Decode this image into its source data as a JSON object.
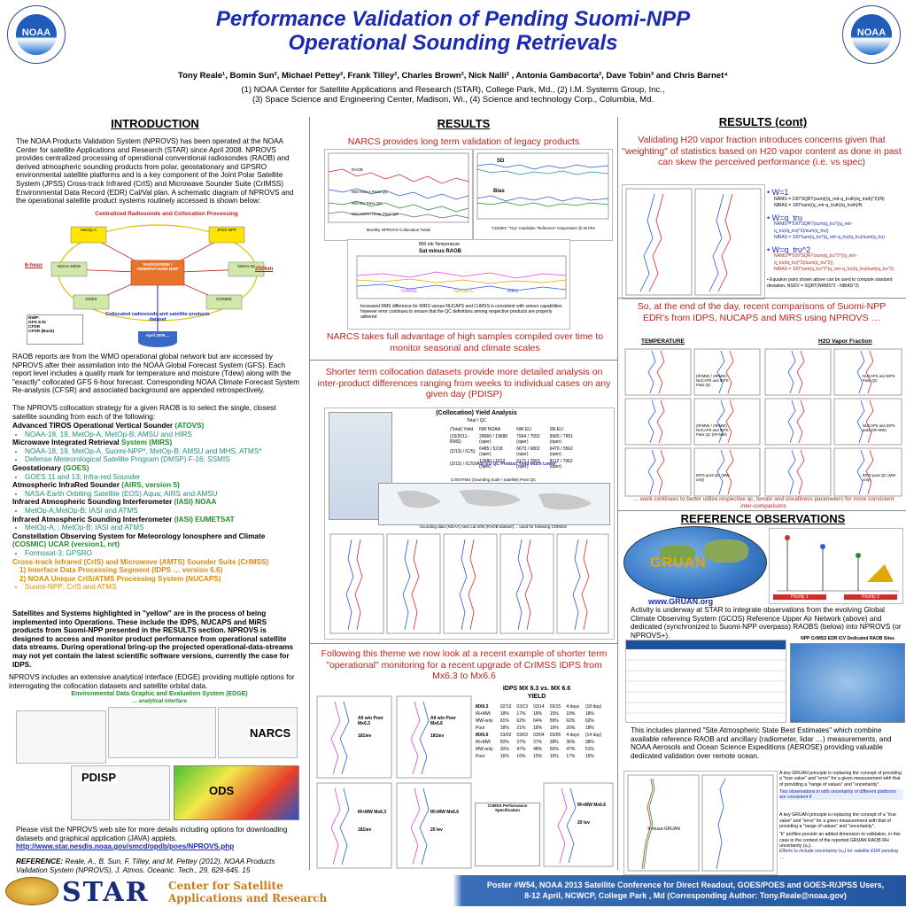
{
  "header": {
    "title_line1": "Performance Validation of Pending Suomi-NPP",
    "title_line2": "Operational Sounding Retrievals",
    "authors": "Tony Reale¹, Bomin Sun², Michael Pettey², Frank Tilley², Charles Brown², Nick Nalli² , Antonia Gambacorta², Dave Tobin³ and Chris Barnet⁴",
    "affil_line1": "(1) NOAA Center for Satellite Applications and Research (STAR), College Park, Md., (2) I.M. Systems Group, Inc.,",
    "affil_line2": "(3) Space Science and Engineering Center, Madison, Wi., (4) Science and technology Corp., Columbia, Md.",
    "logo_text": "NOAA"
  },
  "intro": {
    "heading": "INTRODUCTION",
    "p1": "The NOAA Products Validation System (NPROVS) has been operated at the NOAA Center for satellite Applications and Research (STAR) since April 2008. NPROVS provides centralized processing of operational conventional radiosondes (RAOB) and derived atmospheric sounding products from polar, geostationary and GPSRO environmental satellite platforms and is a key component of the Joint Polar Satellite System (JPSS) Cross-track Infrared (CrIS) and Microwave Sounder Suite (CrIMSS) Environmental Data Record (EDR) Cal/Val plan. A schematic diagram of NPROVS and the operational satellite product systems routinely accessed is shown below:",
    "diagram_title": "Centralized Radiosonde and Collocation Processing",
    "diagram_left_label": "6-hour",
    "diagram_right_label": "250km",
    "diagram_center": "RADIOSONDE / OBSERVATIONS NWP",
    "diagram_nodes": [
      "MetOp-A",
      "JPSS-NPP",
      "NOAA-18/19",
      "NOAA-15",
      "GOES",
      "COSMIC",
      "MetOp-B",
      "AIRS"
    ],
    "diagram_bottom": "Collocated radiosonde and satellite products dataset",
    "diagram_nwp": "NWP:\nGFS 6-hr\nCFSR\nCFSR (Back)",
    "diagram_db": "April 2008 ...",
    "p2": "RAOB reports are from the WMO operational global network but are accessed by NPROVS after their assimilation into the NOAA Global Forecast System (GFS). Each report level includes a quality mark for temperature and moisture (Tdew) along with the \"exactly\" collocated GFS 6-hour forecast. Corresponding NOAA Climate Forecast System Re-analysis (CFSR) and associated background are appended retrospectively.",
    "p3": "The NPROVS collocation strategy for a given RAOB is to select the single, closest satellite sounding from each of the following:",
    "systems": [
      {
        "name": "Advanced TIROS Operational Vertical Sounder",
        "tag": "(ATOVS)",
        "items": [
          "NOAA-18, 19, MetOp-A, MetOp-B; AMSU and HIRS"
        ]
      },
      {
        "name": "Microwave Integrated Retrieval",
        "tag": "System (MIRS)",
        "items": [
          "NOAA-18, 19, MetOp-A, Suomi-NPP*, MetOp-B; AMSU and MHS, ATMS*",
          "Defense Meteorological Satellite Program (DMSP) F-16; SSMIS"
        ]
      },
      {
        "name": "Geostationary",
        "tag": "(GOES)",
        "items": [
          "GOES 11 and 13; Infra-red Sounder"
        ]
      },
      {
        "name": "Atmospheric InfraRed Sounder",
        "tag": "(AIRS, version 5)",
        "items": [
          "NASA-Earth Orbiting Satellite (EOS) Aqua; AIRS and AMSU"
        ]
      },
      {
        "name": "Infrared Atmospheric Sounding Interferometer",
        "tag": "(IASI) NOAA",
        "items": [
          "MetOp-A,MetOp-B; IASI and ATMS"
        ]
      },
      {
        "name": "Infrared Atmospheric Sounding Interferometer",
        "tag": "(IASI) EUMETSAT",
        "items": [
          "MetOp-A, ; MetOp-B; IASI and ATMS"
        ]
      },
      {
        "name": "Constellation Observing System for Meteorology Ionosphere and Climate",
        "tag": "(COSMIC) UCAR (version1, nrt)",
        "items": [
          "Formosat-3; GPSRO"
        ]
      }
    ],
    "crimss_line1": "Cross-track Infrared (CrIS) and Microwave (AMTS) Sounder Suite (CrIMSS)",
    "crimss_line2": "1) Interface Data Processing Segment (IDPS … version 6.6)",
    "crimss_line3": "2) NOAA Unique CrIS/ATMS Processing System (NUCAPS)",
    "crimss_item": "Suomi-NPP; CrIS and ATMS",
    "p4": "Satellites and Systems highlighted in \"yellow\" are in the process of being implemented into Operations. These include the IDPS, NUCAPS and MiRS products from Suomi-NPP presented in the RESULTS section. NPROVS is designed to access and monitor product performance from operational satellite data streams. During operational bring-up the projected operational-data-streams may not yet contain the latest scientific software versions, currently the case for IDPS.",
    "p5": "NPROVS includes an extensive analytical interface (EDGE) providing multiple options for interrogating the collocation datasets and satellite orbital data.",
    "edge_title": "Environmental Data Graphic and Evaluation System (EDGE)",
    "edge_sub": "… analytical interface",
    "label_narcs": "NARCS",
    "label_pdisp": "PDISP",
    "label_ods": "ODS",
    "p6": "Please visit the NPROVS web site for more details including options for downloading datasets and graphical application (JAVA) applets.",
    "url": "http://www.star.nesdis.noaa.gov/smcd/opdb/poes/NPROVS.php",
    "ref_label": "REFERENCE:",
    "ref_text": "Reale, A., B. Sun, F. Tilley, and M. Pettey (2012), NOAA Products Validation System (NPROVS), J. Atmos. Oceanic. Tech., 29, 629-645. 15"
  },
  "results": {
    "heading": "RESULTS",
    "h1": "NARCS provides long term validation of legacy products",
    "chart1_labels": [
      "SD",
      "Bias",
      "RAOB",
      "MSI NOAA Pass QC",
      "MSI EU Pass QC",
      "MSI NOAA Clear Pass QC"
    ],
    "chart1_caption": "Monthly NPROVS Collocation Totals",
    "chart1_caption2": "\"COSMIC \"Tiny\" Candidate \"Reference\" temperature @ 50 hPa",
    "chart2_title": "850 mb Temperature",
    "chart2_sub": "Sat minus RAOB",
    "chart2_series": [
      "CrIMSS",
      "NUCAPS",
      "AIRS"
    ],
    "chart2_note": "Increased RMS difference for MIRS versus NUCAPS and CrIMSS is consistent with sensor capabilities however error continues to ensure that the QC definitions among respective products are properly adhered",
    "h2": "NARCS takes full advantage of high samples compiled over time to monitor seasonal and climate scales",
    "h3": "Shorter term collocation datasets provide more detailed analysis on inter-product differences ranging from weeks to individual cases on any given day (PDISP)",
    "coll_title": "(Collocation) Yield Analysis",
    "coll_sub": "Total / QC",
    "coll_rows": [
      [
        "(Total) Yield",
        "NW  NOAA",
        "NW  EU",
        "SN  EU"
      ],
      [
        "(10/2011-RMS)",
        "28660 / 19686 (oper)",
        "7964 / 7552 (oper)",
        "9965 / 7951 (oper)"
      ],
      [
        "(2/13) / IC/S)",
        "6485 / 5218 (oper)",
        "6673 / 6802 (oper)",
        "6470 / 5562 (oper)"
      ],
      [
        "(3/13) / IC/S)",
        "13580 / 1912 (oper)",
        "9171 / 7562 (oper)",
        "8112 / 7962 (oper)"
      ]
    ],
    "coll_note": "IASI EU QC Product Yield Much Lower",
    "map_caption1": "CrIS/ATMS (Sounding Suite / Satellite) Pass QC",
    "map_caption2": "Sounding data (NOAA) near Lat 40N (RAOB dataset) ... used for following CRIMSS",
    "h4": "Following this theme we now look at a recent example of shorter term \"operational\" monitoring for a recent upgrade of CrIMSS IDPS from Mx6.3 to Mx6.6",
    "idps_title": "IDPS MX 6.3 vs. MX 6.6",
    "idps_yield": "YIELD",
    "idps_rows": [
      [
        "MX6.3",
        "02/13",
        "03/13",
        "03/14",
        "03/15",
        "4 days",
        "(18 day)"
      ],
      [
        "IR+MW",
        "18%",
        "17%",
        "18%",
        "15%",
        "19%",
        "18%"
      ],
      [
        "MW-only",
        "61%",
        "62%",
        "64%",
        "59%",
        "62%",
        "62%"
      ],
      [
        "Poor",
        "18%",
        "21%",
        "18%",
        "19%",
        "20%",
        "18%"
      ],
      [
        "MX6.6",
        "03/02",
        "03/03",
        "03/04",
        "03/05",
        "4 days",
        "(14 day)"
      ],
      [
        "IR+MW",
        "50%",
        "37%",
        "37%",
        "38%",
        "36%",
        "38%"
      ],
      [
        "MW-only",
        "30%",
        "47%",
        "48%",
        "50%",
        "47%",
        "51%"
      ],
      [
        "Poor",
        "16%",
        "16%",
        "15%",
        "15%",
        "17%",
        "15%"
      ]
    ],
    "idps_panels": [
      "All w/o Poor Mx6.3",
      "All w/o Poor Mx6.6",
      "IR+MW Mx6.3",
      "IR+MW Mx6.6",
      "IR+MW Mx6.6"
    ],
    "idps_panel_sub": [
      "181lev",
      "181lev",
      "181lev",
      "20 lev",
      "20 lev"
    ],
    "crimss_perf": "CrIMSS Performance Specification"
  },
  "results_cont": {
    "heading": "RESULTS (cont)",
    "h1": "Validating H20 vapor fraction introduces concerns given that \"weighting\" of statistics based on H20 vapor content as done in past can skew the perceived performance (i.e. vs spec)",
    "w_items": [
      {
        "head": "W=1",
        "subs": [
          "NRMS = 100*SQRT(sum(((q_retr-q_truth)/q_truth)^2)/N)",
          "NBIAS = 100*sum((q_retr-q_truth)/q_truth)/N"
        ]
      },
      {
        "head": "W=q_tru",
        "subs": [
          "NRMS = 100*SQRT(sum(q_tru*((q_retr-q_tru)/q_tru)^2)/sum(q_tru))",
          "NBIAS = 100*sum(q_tru*(q_retr-q_tru)/q_tru)/sum(q_tru)"
        ]
      },
      {
        "head": "W=q_tru^2",
        "subs": [
          "NRMS = 100*SQRT(sum(q_tru^2*((q_retr-q_tru)/q_tru)^2)/sum(q_tru^2))",
          "NBIAS = 100*sum(q_tru^2*(q_retr-q_tru)/q_tru)/sum(q_tru^2)"
        ]
      },
      {
        "head": "Equation pairs shown above can be used to compute standard deviation, NSDV = SQRT(NRMS^2 - NBIAS^2)",
        "subs": []
      }
    ],
    "h2": "So, at the end of the day, recent comparisons of Suomi-NPP EDR's from IDPS, NUCAPS and MiRS using NPROVS …",
    "temp_label": "TEMPERATURE",
    "h2o_label": "H2O Vapor Fraction",
    "prof_labels": [
      "(IR/MW) / (IR/MW) NUCAPS and IDPS Pass QC",
      "NUCAPS and IDPS Pass QC",
      "(IR/MW) / (IR/MW) NUCAPS and IDPS Pass QC (IR+MW)",
      "NUCAPS and IDPS pass (IR+MW)",
      "IDPS pass QC (MW only)",
      "IDPS pass QC (MW only)"
    ],
    "work_note": "… work continues to better utilize respective qc, terrain and cloudiness parameters for more consistent inter-comparisons",
    "ref_heading": "REFERENCE  OBSERVATIONS",
    "gruan_label": "GRUAN",
    "gruan_url": "www.GRUAN.org",
    "priority1": "Priority 1",
    "priority2": "Priority 2",
    "activity_text": "Activity is underway at STAR to integrate observations from the evolving Global Climate Observing System (GCOS) Reference Upper Air Network (above) and dedicated (synchronized to Suomi-NPP overpass) RAOBS (below) into NPROVS (or NPROVS+).",
    "npp_table_title": "NPP CrIMSS EDR ICV Dedicated RAOB Sites",
    "sase_text": "This includes planned \"Site Atmospheric State Best Estimates\" which combine available reference RAOB and ancillary (radiometer, lidar …) measurements, and NOAA Aerosols and Ocean Science Expeditions (AEROSE) providing valuable dedicated validation over remote ocean.",
    "xmusa": "X-musa-GRUAN",
    "key1": "A key GRUAN principle is replacing the concept of providing a \"true value\" and \"error\" for a given measurement with that of providing a \"range of values\" and \"uncertainty\".",
    "key1b": "Two observations in with uncertainty of different platforms are consistent if",
    "key2": "A key GRUAN principle is replacing the concept of a \"true value\" and \"error\" for a given measurement with that of providing a \"range of values\" and \"uncertainty\".",
    "key3": "\"k\" profiles provide an added dimension to validation, in this case in the context of the reported GRUAN RAOB RH uncertainty (uₓ).",
    "key3b": "Efforts to include uncertainty (uₓ) for satellite EDR pending …"
  },
  "footer": {
    "star": "STAR",
    "star_sub1": "Center for Satellite",
    "star_sub2": "Applications and Research",
    "line1": "Poster #W54, NOAA 2013 Satellite Conference for Direct Readout, GOES/POES and GOES-R/JPSS Users,",
    "line2": "8-12 April, NCWCP, College Park , Md (Corresponding Author: Tony.Reale@noaa.gov)"
  }
}
